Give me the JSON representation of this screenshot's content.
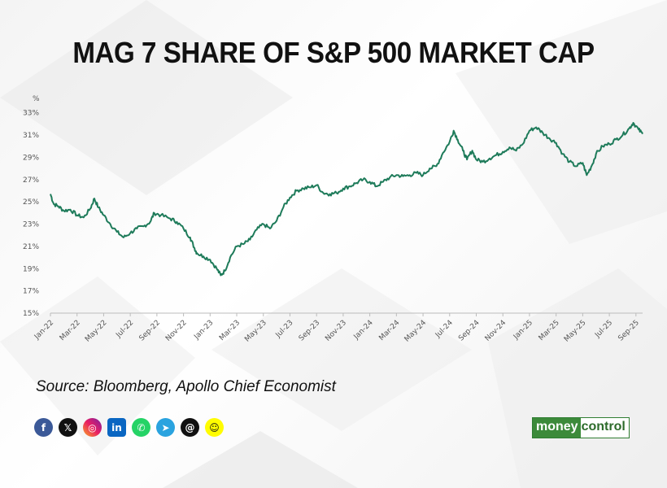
{
  "title": "MAG 7 SHARE OF S&P 500 MARKET CAP",
  "source": "Source: Bloomberg, Apollo Chief Economist",
  "brand": {
    "part1": "money",
    "part2": "control"
  },
  "social_icons": [
    "facebook-icon",
    "x-icon",
    "instagram-icon",
    "linkedin-icon",
    "whatsapp-icon",
    "telegram-icon",
    "threads-icon",
    "snapchat-icon"
  ],
  "colors": {
    "line": "#1e7b5a",
    "brand_green": "#3c8a3a"
  },
  "chart_data": {
    "type": "line",
    "ylabel": "%",
    "ylim": [
      15,
      34
    ],
    "y_ticks": [
      "15%",
      "17%",
      "19%",
      "21%",
      "23%",
      "25%",
      "27%",
      "29%",
      "31%",
      "33%"
    ],
    "x_ticks": [
      "Jan-22",
      "Mar-22",
      "May-22",
      "Jul-22",
      "Sep-22",
      "Nov-22",
      "Jan-23",
      "Mar-23",
      "May-23",
      "Jul-23",
      "Sep-23",
      "Nov-23",
      "Jan-24",
      "Mar-24",
      "May-24",
      "Jul-24",
      "Sep-24",
      "Nov-24",
      "Jan-25",
      "Mar-25",
      "May-25",
      "Jul-25",
      "Sep-25"
    ],
    "x_month_index_range": [
      0,
      44.5
    ],
    "grid": false,
    "legend": "none",
    "series": [
      {
        "points": [
          [
            0,
            25.7
          ],
          [
            0.25,
            24.8
          ],
          [
            0.6,
            24.6
          ],
          [
            1,
            24.2
          ],
          [
            1.5,
            24.3
          ],
          [
            2,
            23.8
          ],
          [
            2.5,
            23.6
          ],
          [
            3,
            24.4
          ],
          [
            3.3,
            25.3
          ],
          [
            3.6,
            24.5
          ],
          [
            4,
            23.8
          ],
          [
            4.5,
            23.0
          ],
          [
            5,
            22.3
          ],
          [
            5.5,
            21.8
          ],
          [
            6,
            22.2
          ],
          [
            6.5,
            22.6
          ],
          [
            7,
            22.8
          ],
          [
            7.5,
            23.2
          ],
          [
            7.8,
            24.0
          ],
          [
            8.3,
            23.8
          ],
          [
            9,
            23.5
          ],
          [
            9.5,
            23.2
          ],
          [
            10,
            22.6
          ],
          [
            10.5,
            21.8
          ],
          [
            10.8,
            20.9
          ],
          [
            11,
            20.4
          ],
          [
            11.5,
            20.1
          ],
          [
            12,
            19.8
          ],
          [
            12.5,
            19.0
          ],
          [
            12.8,
            18.4
          ],
          [
            13.1,
            18.8
          ],
          [
            13.5,
            20.0
          ],
          [
            14,
            21.0
          ],
          [
            14.5,
            21.2
          ],
          [
            15,
            21.6
          ],
          [
            15.5,
            22.5
          ],
          [
            16,
            23.0
          ],
          [
            16.5,
            22.6
          ],
          [
            17,
            23.3
          ],
          [
            17.5,
            24.5
          ],
          [
            18,
            25.4
          ],
          [
            18.5,
            26.0
          ],
          [
            19,
            26.2
          ],
          [
            19.5,
            26.3
          ],
          [
            20,
            26.5
          ],
          [
            20.5,
            25.8
          ],
          [
            21,
            25.7
          ],
          [
            21.5,
            25.8
          ],
          [
            22,
            26.2
          ],
          [
            22.5,
            26.4
          ],
          [
            23,
            26.7
          ],
          [
            23.5,
            27.0
          ],
          [
            24,
            26.8
          ],
          [
            24.5,
            26.4
          ],
          [
            25,
            26.8
          ],
          [
            25.5,
            27.2
          ],
          [
            26,
            27.4
          ],
          [
            26.5,
            27.3
          ],
          [
            27,
            27.4
          ],
          [
            27.5,
            27.6
          ],
          [
            28,
            27.4
          ],
          [
            28.5,
            28.0
          ],
          [
            29,
            28.2
          ],
          [
            29.5,
            29.4
          ],
          [
            30,
            30.4
          ],
          [
            30.3,
            31.4
          ],
          [
            30.6,
            30.6
          ],
          [
            31,
            29.6
          ],
          [
            31.3,
            28.8
          ],
          [
            31.7,
            29.6
          ],
          [
            32,
            28.8
          ],
          [
            32.5,
            28.6
          ],
          [
            33,
            28.9
          ],
          [
            33.5,
            29.2
          ],
          [
            34,
            29.5
          ],
          [
            34.5,
            29.9
          ],
          [
            35,
            29.6
          ],
          [
            35.5,
            30.2
          ],
          [
            36,
            31.4
          ],
          [
            36.5,
            31.7
          ],
          [
            37,
            31.2
          ],
          [
            37.5,
            30.7
          ],
          [
            38,
            30.3
          ],
          [
            38.5,
            29.3
          ],
          [
            39,
            28.6
          ],
          [
            39.5,
            28.2
          ],
          [
            40,
            28.5
          ],
          [
            40.3,
            27.4
          ],
          [
            40.7,
            28.3
          ],
          [
            41,
            29.3
          ],
          [
            41.5,
            30.0
          ],
          [
            42,
            30.2
          ],
          [
            42.5,
            30.6
          ],
          [
            43,
            31.0
          ],
          [
            43.5,
            31.6
          ],
          [
            43.8,
            32.1
          ],
          [
            44.2,
            31.5
          ],
          [
            44.5,
            31.1
          ]
        ]
      }
    ]
  }
}
